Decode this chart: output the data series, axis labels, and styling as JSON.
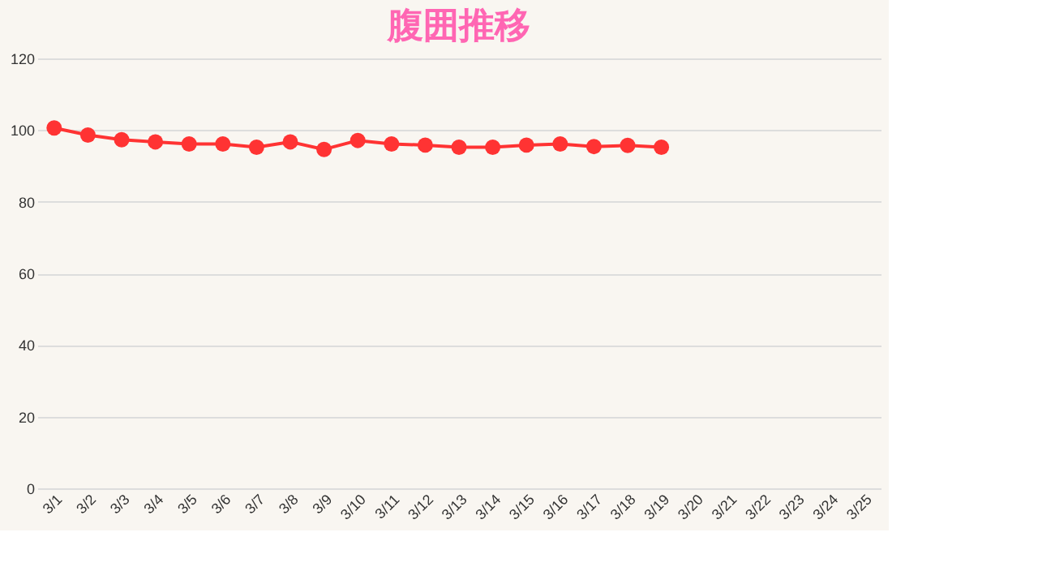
{
  "chart_data": {
    "type": "line",
    "title": "腹囲推移",
    "categories": [
      "3/1",
      "3/2",
      "3/3",
      "3/4",
      "3/5",
      "3/6",
      "3/7",
      "3/8",
      "3/9",
      "3/10",
      "3/11",
      "3/12",
      "3/13",
      "3/14",
      "3/15",
      "3/16",
      "3/17",
      "3/18",
      "3/19",
      "3/20",
      "3/21",
      "3/22",
      "3/23",
      "3/24",
      "3/25"
    ],
    "series": [
      {
        "color": "#ff3333",
        "values": [
          100.6,
          98.6,
          97.3,
          96.7,
          96.1,
          96.1,
          95.2,
          96.7,
          94.6,
          97.1,
          96.1,
          95.8,
          95.2,
          95.2,
          95.8,
          96.1,
          95.4,
          95.7,
          95.2,
          null,
          null,
          null,
          null,
          null,
          null
        ]
      }
    ],
    "ylim": [
      0,
      120
    ],
    "yticks": [
      0,
      20,
      40,
      60,
      80,
      100,
      120
    ],
    "grid": "y",
    "marker": "circle"
  }
}
